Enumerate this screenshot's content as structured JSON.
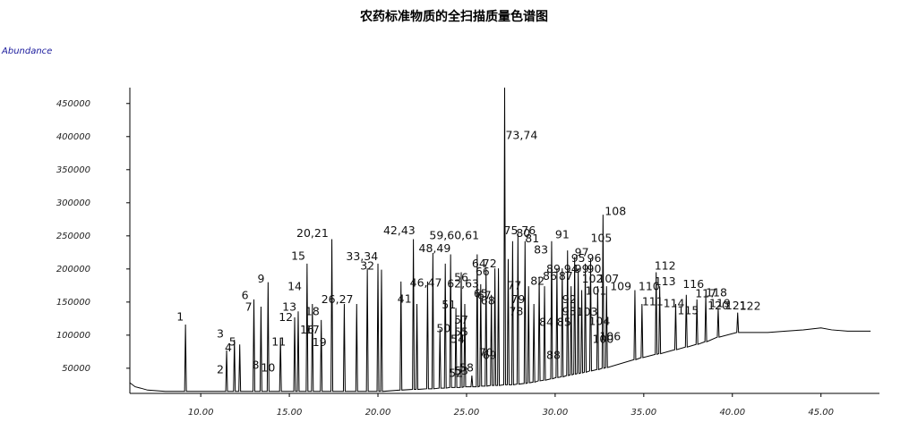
{
  "chart_data": {
    "type": "line",
    "title": "农药标准物质的全扫描质量色谱图",
    "y_label": "Abundance",
    "color": "#000000",
    "y_label_color": "#1a1a9c",
    "xlim": [
      6.0,
      48.3
    ],
    "ylim": [
      12000,
      474000
    ],
    "xticks": [
      {
        "value": 10,
        "label": "10.00"
      },
      {
        "value": 15,
        "label": "15.00"
      },
      {
        "value": 20,
        "label": "20.00"
      },
      {
        "value": 25,
        "label": "25.00"
      },
      {
        "value": 30,
        "label": "30.00"
      },
      {
        "value": 35,
        "label": "35.00"
      },
      {
        "value": 40,
        "label": "40.00"
      },
      {
        "value": 45,
        "label": "45.00"
      }
    ],
    "yticks": [
      50000,
      100000,
      150000,
      200000,
      250000,
      300000,
      350000,
      400000,
      450000
    ],
    "x": [
      6.0,
      6.3,
      6.6,
      7.0,
      8.0,
      9.09,
      9.14,
      9.19,
      11.41,
      11.46,
      11.51,
      11.85,
      11.9,
      11.95,
      12.15,
      12.2,
      12.25,
      12.95,
      13.0,
      13.05,
      13.35,
      13.4,
      13.45,
      13.75,
      13.8,
      13.85,
      14.45,
      14.5,
      14.55,
      15.25,
      15.3,
      15.35,
      15.45,
      15.5,
      15.55,
      15.95,
      16.0,
      16.05,
      16.25,
      16.3,
      16.35,
      16.75,
      16.8,
      16.85,
      17.35,
      17.4,
      17.45,
      18.05,
      18.1,
      18.15,
      18.75,
      18.8,
      18.85,
      19.35,
      19.4,
      19.45,
      19.95,
      20.0,
      20.05,
      20.15,
      20.2,
      20.25,
      21.25,
      21.3,
      21.35,
      21.95,
      22.0,
      22.05,
      22.15,
      22.2,
      22.25,
      22.75,
      22.8,
      22.85,
      23.05,
      23.1,
      23.15,
      23.45,
      23.5,
      23.55,
      23.75,
      23.8,
      23.85,
      24.05,
      24.1,
      24.15,
      24.35,
      24.4,
      24.45,
      24.65,
      24.7,
      24.75,
      24.85,
      24.9,
      24.95,
      25.25,
      25.3,
      25.35,
      25.55,
      25.6,
      25.65,
      25.75,
      25.8,
      25.85,
      26.05,
      26.1,
      26.15,
      26.35,
      26.4,
      26.45,
      26.55,
      26.6,
      26.65,
      26.75,
      26.8,
      26.85,
      27.1,
      27.15,
      27.2,
      27.3,
      27.35,
      27.4,
      27.55,
      27.6,
      27.65,
      27.85,
      27.9,
      27.95,
      28.25,
      28.3,
      28.35,
      28.45,
      28.5,
      28.55,
      28.75,
      28.8,
      28.85,
      29.05,
      29.1,
      29.15,
      29.35,
      29.4,
      29.45,
      29.75,
      29.8,
      29.85,
      30.05,
      30.1,
      30.15,
      30.35,
      30.4,
      30.45,
      30.65,
      30.7,
      30.75,
      30.85,
      30.9,
      30.95,
      31.05,
      31.1,
      31.15,
      31.25,
      31.3,
      31.35,
      31.45,
      31.5,
      31.55,
      31.65,
      31.7,
      31.75,
      31.95,
      32.0,
      32.05,
      32.35,
      32.4,
      32.45,
      32.65,
      32.7,
      32.75,
      32.85,
      32.9,
      32.95,
      34.45,
      34.5,
      34.55,
      34.85,
      34.9,
      34.95,
      35.65,
      35.7,
      35.75,
      35.85,
      35.9,
      35.95,
      36.75,
      36.8,
      36.85,
      37.35,
      37.4,
      37.45,
      37.95,
      38.0,
      38.05,
      38.45,
      38.5,
      38.55,
      39.15,
      39.2,
      39.25,
      40.25,
      40.3,
      40.35,
      41.0,
      42.0,
      43.0,
      44.0,
      45.0,
      45.6,
      46.5,
      47.8
    ],
    "values": [
      28000,
      22000,
      20000,
      17000,
      15000,
      15000,
      116000,
      15000,
      15000,
      77000,
      15000,
      15000,
      93000,
      15000,
      15000,
      86000,
      15000,
      15000,
      154000,
      15000,
      15000,
      143000,
      15000,
      15000,
      180000,
      15000,
      15000,
      96000,
      15000,
      15000,
      127000,
      15000,
      15000,
      136000,
      15000,
      15000,
      208000,
      15000,
      15000,
      147000,
      15000,
      15000,
      123000,
      15000,
      15000,
      245000,
      15000,
      15000,
      147000,
      15000,
      15000,
      147000,
      15000,
      15000,
      201000,
      15000,
      15000,
      208000,
      15000,
      15000,
      199000,
      15000,
      17000,
      181000,
      17000,
      18000,
      245000,
      18000,
      18000,
      147000,
      18000,
      19000,
      181000,
      19000,
      19000,
      224000,
      19000,
      20000,
      109000,
      20000,
      20000,
      208000,
      20000,
      21000,
      222000,
      21000,
      21000,
      141000,
      21000,
      21000,
      195000,
      21000,
      22000,
      147000,
      22000,
      22000,
      39000,
      22000,
      22000,
      222000,
      22000,
      23000,
      177000,
      23000,
      23000,
      201000,
      23000,
      24000,
      161000,
      24000,
      24000,
      201000,
      24000,
      24000,
      201000,
      24000,
      25000,
      474000,
      25000,
      25000,
      215000,
      25000,
      25000,
      242000,
      25000,
      26000,
      253000,
      26000,
      27000,
      242000,
      27000,
      28000,
      174000,
      28000,
      29000,
      147000,
      29000,
      31000,
      188000,
      31000,
      32000,
      174000,
      32000,
      34000,
      242000,
      34000,
      36000,
      201000,
      36000,
      37000,
      201000,
      37000,
      39000,
      228000,
      39000,
      40000,
      174000,
      40000,
      41000,
      218000,
      41000,
      42000,
      201000,
      42000,
      43000,
      168000,
      43000,
      44000,
      208000,
      44000,
      46000,
      215000,
      46000,
      48000,
      174000,
      48000,
      50000,
      282000,
      50000,
      51000,
      174000,
      51000,
      63000,
      168000,
      63000,
      66000,
      147000,
      66000,
      71000,
      195000,
      71000,
      72000,
      174000,
      72000,
      78000,
      147000,
      78000,
      82000,
      161000,
      82000,
      86000,
      154000,
      86000,
      90000,
      161000,
      90000,
      97000,
      141000,
      97000,
      104000,
      134000,
      104000,
      104000,
      104000,
      106000,
      108000,
      111000,
      108000,
      106000,
      106000
    ],
    "peak_labels": [
      {
        "text": "1",
        "x": 8.64,
        "y": 127000
      },
      {
        "text": "2",
        "x": 10.9,
        "y": 47000
      },
      {
        "text": "3",
        "x": 10.9,
        "y": 101000
      },
      {
        "text": "4",
        "x": 11.36,
        "y": 80000
      },
      {
        "text": "5",
        "x": 11.6,
        "y": 89000
      },
      {
        "text": "6",
        "x": 12.3,
        "y": 159000
      },
      {
        "text": "7",
        "x": 12.5,
        "y": 142000
      },
      {
        "text": "8",
        "x": 12.9,
        "y": 54000
      },
      {
        "text": "9",
        "x": 13.2,
        "y": 184000
      },
      {
        "text": "10",
        "x": 13.4,
        "y": 50000
      },
      {
        "text": "11",
        "x": 14.0,
        "y": 89000
      },
      {
        "text": "12",
        "x": 14.4,
        "y": 126000
      },
      {
        "text": "13",
        "x": 14.6,
        "y": 142000
      },
      {
        "text": "14",
        "x": 14.9,
        "y": 173000
      },
      {
        "text": "15",
        "x": 15.1,
        "y": 219000
      },
      {
        "text": "16",
        "x": 15.6,
        "y": 107000
      },
      {
        "text": "17",
        "x": 15.9,
        "y": 107000
      },
      {
        "text": "18",
        "x": 15.9,
        "y": 135000
      },
      {
        "text": "19",
        "x": 16.3,
        "y": 88000
      },
      {
        "text": "20,21",
        "x": 15.4,
        "y": 253000
      },
      {
        "text": "26,27",
        "x": 16.8,
        "y": 153000
      },
      {
        "text": "32",
        "x": 19.0,
        "y": 204000
      },
      {
        "text": "33,34",
        "x": 18.2,
        "y": 218000
      },
      {
        "text": "41",
        "x": 21.1,
        "y": 154000
      },
      {
        "text": "42,43",
        "x": 20.3,
        "y": 257000
      },
      {
        "text": "46,47",
        "x": 21.8,
        "y": 178000
      },
      {
        "text": "48,49",
        "x": 22.3,
        "y": 230000
      },
      {
        "text": "50",
        "x": 23.3,
        "y": 109000
      },
      {
        "text": "51",
        "x": 23.6,
        "y": 145000
      },
      {
        "text": "52",
        "x": 24.0,
        "y": 42000
      },
      {
        "text": "53",
        "x": 24.3,
        "y": 45000
      },
      {
        "text": "54",
        "x": 24.1,
        "y": 93000
      },
      {
        "text": "55",
        "x": 24.3,
        "y": 104000
      },
      {
        "text": "56",
        "x": 24.3,
        "y": 186000
      },
      {
        "text": "57",
        "x": 24.3,
        "y": 122000
      },
      {
        "text": "58",
        "x": 24.6,
        "y": 50000
      },
      {
        "text": "59,60,61",
        "x": 22.9,
        "y": 250000
      },
      {
        "text": "62,63",
        "x": 23.9,
        "y": 177000
      },
      {
        "text": "64",
        "x": 25.3,
        "y": 207000
      },
      {
        "text": "65",
        "x": 25.4,
        "y": 162000
      },
      {
        "text": "66",
        "x": 25.5,
        "y": 195000
      },
      {
        "text": "67",
        "x": 25.6,
        "y": 159000
      },
      {
        "text": "68",
        "x": 25.8,
        "y": 151000
      },
      {
        "text": "69",
        "x": 25.9,
        "y": 69000
      },
      {
        "text": "70",
        "x": 25.7,
        "y": 73000
      },
      {
        "text": "72",
        "x": 25.9,
        "y": 207000
      },
      {
        "text": "73,74",
        "x": 27.2,
        "y": 401000
      },
      {
        "text": "75",
        "x": 27.1,
        "y": 257000
      },
      {
        "text": "76",
        "x": 28.1,
        "y": 257000
      },
      {
        "text": "77",
        "x": 27.3,
        "y": 174000
      },
      {
        "text": "78",
        "x": 27.4,
        "y": 135000
      },
      {
        "text": "79",
        "x": 27.5,
        "y": 153000
      },
      {
        "text": "80",
        "x": 27.8,
        "y": 253000
      },
      {
        "text": "81",
        "x": 28.3,
        "y": 245000
      },
      {
        "text": "82",
        "x": 28.6,
        "y": 181000
      },
      {
        "text": "83",
        "x": 28.8,
        "y": 228000
      },
      {
        "text": "84",
        "x": 29.1,
        "y": 119000
      },
      {
        "text": "85",
        "x": 30.1,
        "y": 119000
      },
      {
        "text": "86",
        "x": 29.3,
        "y": 188000
      },
      {
        "text": "87",
        "x": 30.2,
        "y": 188000
      },
      {
        "text": "88",
        "x": 29.5,
        "y": 69000
      },
      {
        "text": "89",
        "x": 29.5,
        "y": 199000
      },
      {
        "text": "90",
        "x": 31.8,
        "y": 199000
      },
      {
        "text": "91",
        "x": 30.0,
        "y": 251000
      },
      {
        "text": "92",
        "x": 30.4,
        "y": 153000
      },
      {
        "text": "93",
        "x": 30.4,
        "y": 135000
      },
      {
        "text": "94",
        "x": 30.5,
        "y": 199000
      },
      {
        "text": "95",
        "x": 30.9,
        "y": 215000
      },
      {
        "text": "96",
        "x": 31.8,
        "y": 215000
      },
      {
        "text": "97",
        "x": 31.1,
        "y": 224000
      },
      {
        "text": "99",
        "x": 31.1,
        "y": 199000
      },
      {
        "text": "100",
        "x": 32.1,
        "y": 93000
      },
      {
        "text": "101",
        "x": 31.7,
        "y": 166000
      },
      {
        "text": "102",
        "x": 31.5,
        "y": 184000
      },
      {
        "text": "103",
        "x": 31.2,
        "y": 134000
      },
      {
        "text": "104",
        "x": 31.9,
        "y": 120000
      },
      {
        "text": "105",
        "x": 32.0,
        "y": 246000
      },
      {
        "text": "106",
        "x": 32.5,
        "y": 97000
      },
      {
        "text": "107",
        "x": 32.4,
        "y": 184000
      },
      {
        "text": "108",
        "x": 32.8,
        "y": 286000
      },
      {
        "text": "109",
        "x": 33.1,
        "y": 173000
      },
      {
        "text": "110",
        "x": 34.7,
        "y": 173000
      },
      {
        "text": "111",
        "x": 34.9,
        "y": 150000
      },
      {
        "text": "112",
        "x": 35.6,
        "y": 204000
      },
      {
        "text": "113",
        "x": 35.6,
        "y": 180000
      },
      {
        "text": "114",
        "x": 36.1,
        "y": 147000
      },
      {
        "text": "115",
        "x": 36.9,
        "y": 136000
      },
      {
        "text": "116",
        "x": 37.2,
        "y": 176000
      },
      {
        "text": "117",
        "x": 37.9,
        "y": 162000
      },
      {
        "text": "118",
        "x": 38.5,
        "y": 163000
      },
      {
        "text": "119",
        "x": 38.7,
        "y": 147000
      },
      {
        "text": "120",
        "x": 38.6,
        "y": 144000
      },
      {
        "text": "121",
        "x": 39.6,
        "y": 144000
      },
      {
        "text": "122",
        "x": 40.4,
        "y": 143000
      }
    ]
  }
}
